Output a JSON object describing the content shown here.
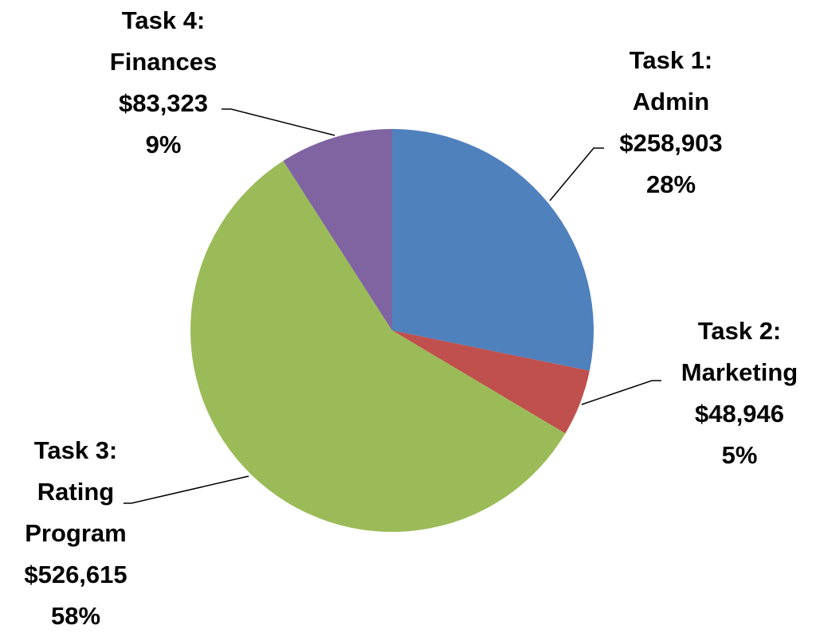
{
  "chart_data": {
    "type": "pie",
    "categories": [
      "Task 1: Admin",
      "Task 2: Marketing",
      "Task 3: Rating Program",
      "Task 4: Finances"
    ],
    "values": [
      258903,
      48946,
      526615,
      83323
    ],
    "value_labels": [
      "$258,903",
      "$48,946",
      "$526,615",
      "$83,323"
    ],
    "percentages": [
      28,
      5,
      58,
      9
    ],
    "percentage_labels": [
      "28%",
      "5%",
      "58%",
      "9%"
    ],
    "colors": [
      "#4f81bd",
      "#c0504d",
      "#9bbb59",
      "#8064a2"
    ]
  }
}
